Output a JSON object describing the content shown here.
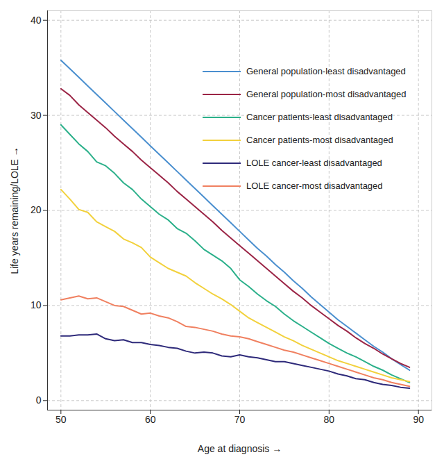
{
  "chart_data": {
    "type": "line",
    "x_label": "Age at diagnosis",
    "y_label": "Life years remaining/LOLE",
    "x": [
      50,
      51,
      52,
      53,
      54,
      55,
      56,
      57,
      58,
      59,
      60,
      61,
      62,
      63,
      64,
      65,
      66,
      67,
      68,
      69,
      70,
      71,
      72,
      73,
      74,
      75,
      76,
      77,
      78,
      79,
      80,
      81,
      82,
      83,
      84,
      85,
      86,
      87,
      88,
      89
    ],
    "xlim": [
      48.5,
      91.5
    ],
    "xticks": [
      50,
      60,
      70,
      80,
      90
    ],
    "ylim": [
      -1,
      41
    ],
    "yticks": [
      0,
      10,
      20,
      30,
      40
    ],
    "grid": true,
    "legend": "top-right",
    "series": [
      {
        "name": "General population-least disadvantaged",
        "color": "#4a8fcf",
        "values": [
          35.8,
          34.9,
          34.0,
          33.1,
          32.2,
          31.3,
          30.4,
          29.5,
          28.6,
          27.7,
          26.8,
          25.9,
          25.0,
          24.1,
          23.2,
          22.3,
          21.4,
          20.5,
          19.6,
          18.7,
          17.8,
          16.9,
          16.0,
          15.2,
          14.3,
          13.5,
          12.6,
          11.8,
          10.9,
          10.1,
          9.3,
          8.5,
          7.8,
          7.1,
          6.4,
          5.7,
          5.1,
          4.4,
          3.8,
          3.2
        ]
      },
      {
        "name": "General population-most disadvantaged",
        "color": "#9b2546",
        "values": [
          32.8,
          32.1,
          31.1,
          30.3,
          29.5,
          28.7,
          27.8,
          27.0,
          26.2,
          25.3,
          24.5,
          23.7,
          22.9,
          22.0,
          21.2,
          20.4,
          19.6,
          18.8,
          17.9,
          17.1,
          16.3,
          15.5,
          14.7,
          13.9,
          13.1,
          12.3,
          11.5,
          10.8,
          10.0,
          9.3,
          8.6,
          7.9,
          7.3,
          6.6,
          6.0,
          5.5,
          4.9,
          4.4,
          3.9,
          3.5
        ]
      },
      {
        "name": "Cancer patients-least disadvantaged",
        "color": "#2bb08a",
        "values": [
          29.0,
          28.0,
          27.0,
          26.2,
          25.1,
          24.7,
          23.9,
          22.9,
          22.2,
          21.2,
          20.4,
          19.6,
          19.0,
          18.1,
          17.6,
          16.8,
          15.9,
          15.3,
          14.7,
          13.9,
          12.7,
          12.0,
          11.2,
          10.5,
          9.9,
          9.1,
          8.4,
          7.8,
          7.2,
          6.6,
          6.0,
          5.5,
          5.0,
          4.6,
          4.1,
          3.6,
          3.2,
          2.7,
          2.3,
          1.9
        ]
      },
      {
        "name": "Cancer patients-most disadvantaged",
        "color": "#f2d13c",
        "values": [
          22.2,
          21.2,
          20.1,
          19.8,
          18.8,
          18.3,
          17.8,
          17.0,
          16.6,
          16.1,
          15.1,
          14.5,
          13.9,
          13.5,
          13.1,
          12.4,
          11.8,
          11.2,
          10.7,
          10.1,
          9.4,
          8.7,
          8.2,
          7.7,
          7.2,
          6.7,
          6.3,
          5.8,
          5.4,
          5.0,
          4.6,
          4.2,
          3.9,
          3.6,
          3.3,
          3.0,
          2.7,
          2.4,
          2.2,
          2.0
        ]
      },
      {
        "name": "LOLE cancer-least disadvantaged",
        "color": "#2e2a7a",
        "values": [
          6.8,
          6.8,
          6.9,
          6.9,
          7.0,
          6.5,
          6.3,
          6.4,
          6.1,
          6.1,
          5.9,
          5.8,
          5.6,
          5.5,
          5.2,
          5.0,
          5.1,
          5.0,
          4.7,
          4.6,
          4.8,
          4.6,
          4.5,
          4.3,
          4.1,
          4.1,
          3.9,
          3.7,
          3.5,
          3.3,
          3.1,
          2.8,
          2.6,
          2.3,
          2.2,
          1.9,
          1.7,
          1.6,
          1.4,
          1.3
        ]
      },
      {
        "name": "LOLE cancer-most disadvantaged",
        "color": "#f08060",
        "values": [
          10.6,
          10.8,
          11.0,
          10.7,
          10.8,
          10.4,
          10.0,
          9.9,
          9.5,
          9.1,
          9.2,
          8.9,
          8.7,
          8.3,
          7.8,
          7.7,
          7.5,
          7.3,
          7.0,
          6.8,
          6.7,
          6.5,
          6.2,
          5.9,
          5.6,
          5.3,
          5.1,
          4.8,
          4.5,
          4.2,
          3.9,
          3.6,
          3.3,
          3.0,
          2.7,
          2.4,
          2.2,
          1.9,
          1.7,
          1.5
        ]
      }
    ]
  }
}
